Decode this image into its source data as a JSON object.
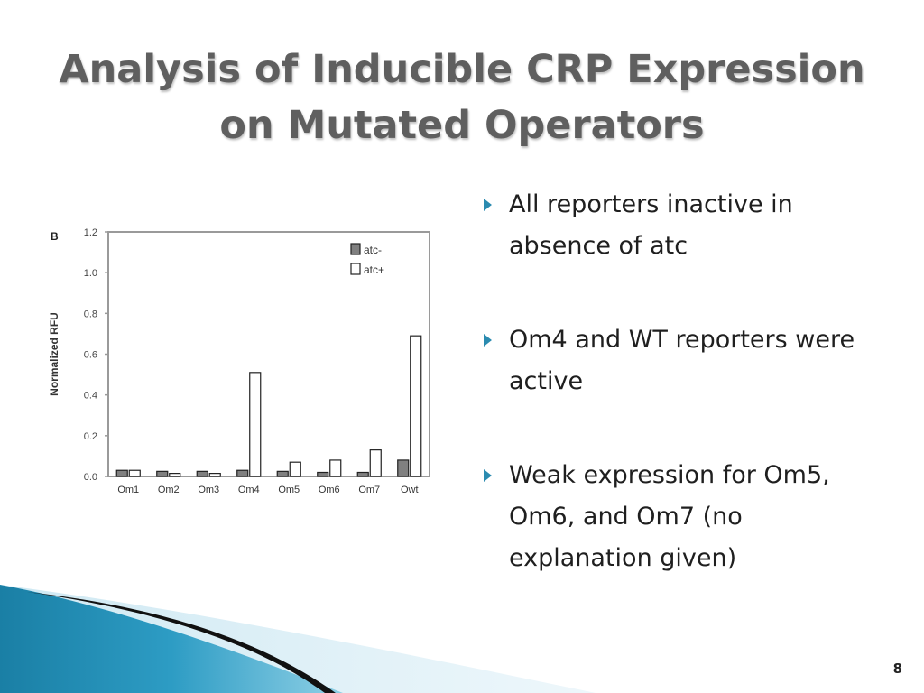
{
  "slide": {
    "title_lines": [
      "Analysis of Inducible CRP Expression",
      "on Mutated Operators"
    ],
    "bullets": [
      "All reporters inactive in absence of atc",
      "Om4 and WT reporters were active",
      "Weak expression for Om5, Om6, and Om7 (no explanation given)"
    ],
    "slide_number": "8",
    "colors": {
      "title": "#5f5f5f",
      "bullet_arrow": "#2b8bb0",
      "wave_blue": "#1e86aa"
    }
  },
  "chart_data": {
    "type": "bar",
    "panel_label": "B",
    "ylabel": "Normalized RFU",
    "xlabel": "",
    "ylim": [
      0,
      1.2
    ],
    "yticks": [
      "0.0",
      "0.2",
      "0.4",
      "0.6",
      "0.8",
      "1.0",
      "1.2"
    ],
    "categories": [
      "Om1",
      "Om2",
      "Om3",
      "Om4",
      "Om5",
      "Om6",
      "Om7",
      "Owt"
    ],
    "series": [
      {
        "name": "atc-",
        "color": "#808080",
        "values": [
          0.03,
          0.025,
          0.025,
          0.03,
          0.025,
          0.02,
          0.02,
          0.08
        ]
      },
      {
        "name": "atc+",
        "color": "#ffffff",
        "values": [
          0.03,
          0.015,
          0.015,
          0.51,
          0.07,
          0.08,
          0.13,
          0.69
        ]
      }
    ],
    "legend_position": "top-right",
    "grid": false
  }
}
